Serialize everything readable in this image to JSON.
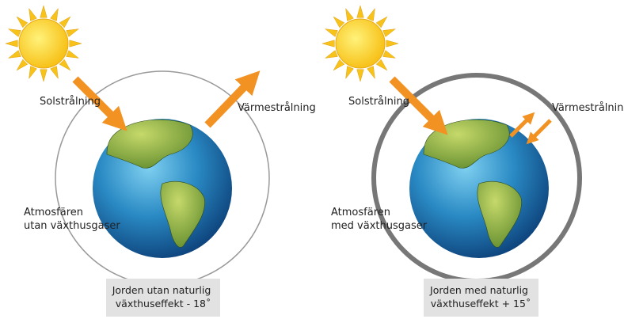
{
  "panels": [
    {
      "solar_label": "Solstrålning",
      "heat_label": "Värmestrålning",
      "atmosphere_label": [
        "Atmosfären",
        "utan växthusgaser"
      ],
      "caption": [
        "Jorden utan naturlig",
        "växthuseffekt - 18˚"
      ]
    },
    {
      "solar_label": "Solstrålning",
      "heat_label": "Värmestrålning",
      "atmosphere_label": [
        "Atmosfären",
        "med växthusgaser"
      ],
      "caption": [
        "Jorden med naturlig",
        "växthuseffekt + 15˚"
      ]
    }
  ]
}
